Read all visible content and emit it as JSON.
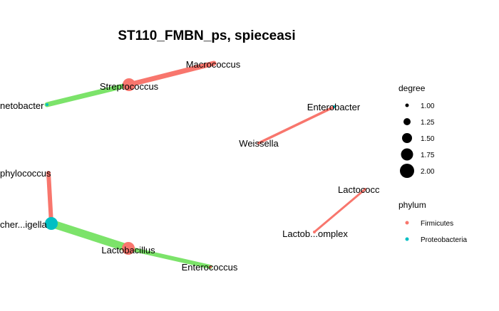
{
  "title": "ST110_FMBN_ps, spieceasi",
  "colors": {
    "firmicutes": "#F8766D",
    "proteobacteria": "#00BFC4",
    "edge_red": "#F8766D",
    "edge_green": "#7CE36A",
    "background": "#FFFFFF"
  },
  "nodes": {
    "macrococcus": {
      "label": "Macrococcus",
      "degree": 1.0,
      "phylum": "Firmicutes"
    },
    "streptococcus": {
      "label": "Streptococcus",
      "degree": 2.0,
      "phylum": "Firmicutes"
    },
    "acinetobacter": {
      "label": "netobacter",
      "degree": 1.0,
      "phylum": "Proteobacteria"
    },
    "enterobacter": {
      "label": "Enterobacter",
      "degree": 1.0,
      "phylum": "Proteobacteria"
    },
    "weissella": {
      "label": "Weissella",
      "degree": 1.0,
      "phylum": "Firmicutes"
    },
    "staphylococcus": {
      "label": "phylococcus",
      "degree": 1.0,
      "phylum": "Firmicutes"
    },
    "escherichia": {
      "label": "cher...igella",
      "degree": 2.0,
      "phylum": "Proteobacteria"
    },
    "lactobacillus": {
      "label": "Lactobacillus",
      "degree": 2.0,
      "phylum": "Firmicutes"
    },
    "enterococcus": {
      "label": "Enterococcus",
      "degree": 1.0,
      "phylum": "Firmicutes"
    },
    "lactococcus": {
      "label": "Lactococc",
      "degree": 1.0,
      "phylum": "Firmicutes"
    },
    "lactobcomplex": {
      "label": "Lactob...omplex",
      "degree": 1.0,
      "phylum": "Firmicutes"
    }
  },
  "legend": {
    "degree_title": "degree",
    "degree_items": [
      "1.00",
      "1.25",
      "1.50",
      "1.75",
      "2.00"
    ],
    "phylum_title": "phylum",
    "phylum_items": [
      {
        "label": "Firmicutes",
        "color": "#F8766D"
      },
      {
        "label": "Proteobacteria",
        "color": "#00BFC4"
      }
    ]
  }
}
